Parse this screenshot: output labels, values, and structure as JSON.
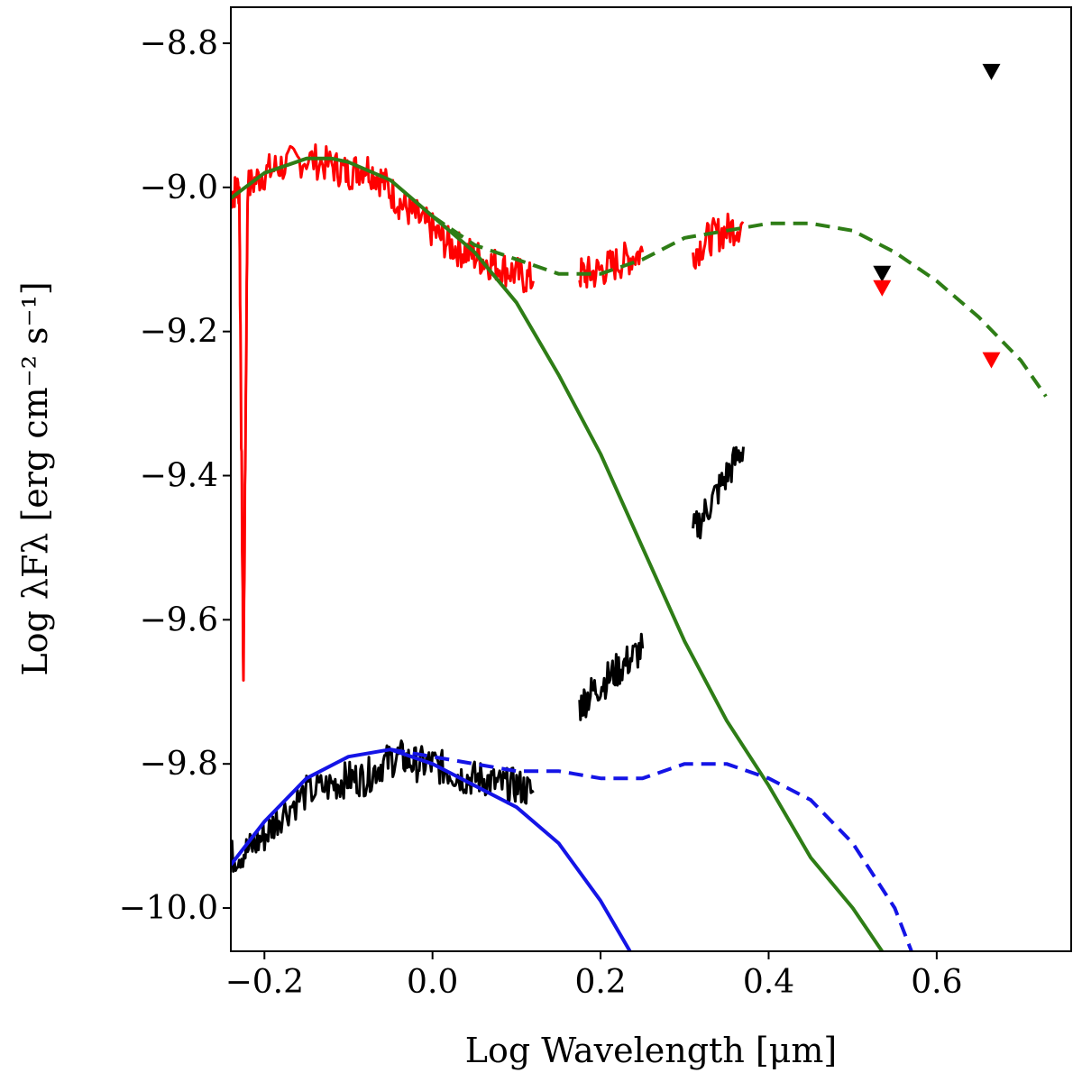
{
  "chart_data": {
    "type": "line",
    "title": "",
    "xlabel": "Log Wavelength [μm]",
    "ylabel": "Log λFλ [erg cm⁻² s⁻¹]",
    "xlim": [
      -0.24,
      0.76
    ],
    "ylim": [
      -10.06,
      -8.75
    ],
    "grid": false,
    "legend": "none",
    "x_ticks": [
      -0.2,
      0.0,
      0.2,
      0.4,
      0.6
    ],
    "x_tick_labels": [
      "−0.2",
      "0.0",
      "0.2",
      "0.4",
      "0.6"
    ],
    "y_ticks": [
      -8.8,
      -9.0,
      -9.2,
      -9.4,
      -9.6,
      -9.8,
      -10.0
    ],
    "y_tick_labels": [
      "−8.8",
      "−9.0",
      "−9.2",
      "−9.4",
      "−9.6",
      "−9.8",
      "−10.0"
    ],
    "series": [
      {
        "name": "observed spectrum (red)",
        "color": "#ff0000",
        "style": "spectrum",
        "x": [
          -0.24,
          -0.23,
          -0.225,
          -0.22,
          -0.2,
          -0.18,
          -0.15,
          -0.12,
          -0.1,
          -0.08,
          -0.06,
          -0.04,
          -0.02,
          0.0,
          0.02,
          0.04,
          0.06,
          0.08,
          0.1,
          0.12
        ],
        "y": [
          -9.01,
          -9.0,
          -9.68,
          -9.0,
          -8.98,
          -8.97,
          -8.96,
          -8.97,
          -8.98,
          -8.97,
          -8.99,
          -9.02,
          -9.04,
          -9.06,
          -9.08,
          -9.09,
          -9.1,
          -9.11,
          -9.12,
          -9.13
        ]
      },
      {
        "name": "observed spectrum (red) segment 2",
        "color": "#ff0000",
        "style": "spectrum",
        "x": [
          0.175,
          0.19,
          0.21,
          0.23,
          0.25
        ],
        "y": [
          -9.12,
          -9.12,
          -9.11,
          -9.1,
          -9.09
        ]
      },
      {
        "name": "observed spectrum (red) segment 3",
        "color": "#ff0000",
        "style": "spectrum",
        "x": [
          0.31,
          0.33,
          0.35,
          0.37
        ],
        "y": [
          -9.09,
          -9.07,
          -9.06,
          -9.05
        ]
      },
      {
        "name": "observed spectrum (black)",
        "color": "#000000",
        "style": "spectrum",
        "x": [
          -0.24,
          -0.22,
          -0.2,
          -0.18,
          -0.15,
          -0.12,
          -0.1,
          -0.08,
          -0.06,
          -0.04,
          -0.02,
          0.0,
          0.02,
          0.04,
          0.06,
          0.08,
          0.1,
          0.12
        ],
        "y": [
          -9.93,
          -9.92,
          -9.9,
          -9.87,
          -9.84,
          -9.83,
          -9.82,
          -9.82,
          -9.8,
          -9.79,
          -9.8,
          -9.8,
          -9.81,
          -9.82,
          -9.82,
          -9.83,
          -9.83,
          -9.84
        ]
      },
      {
        "name": "observed spectrum (black) segment 2",
        "color": "#000000",
        "style": "spectrum",
        "x": [
          0.175,
          0.19,
          0.21,
          0.23,
          0.25
        ],
        "y": [
          -9.72,
          -9.7,
          -9.68,
          -9.66,
          -9.64
        ]
      },
      {
        "name": "observed spectrum (black) segment 3",
        "color": "#000000",
        "style": "spectrum",
        "x": [
          0.31,
          0.33,
          0.35,
          0.37
        ],
        "y": [
          -9.48,
          -9.44,
          -9.4,
          -9.36
        ]
      },
      {
        "name": "green model (solid)",
        "color": "#2e7d16",
        "style": "solid",
        "x": [
          -0.24,
          -0.2,
          -0.15,
          -0.12,
          -0.1,
          -0.05,
          0.0,
          0.05,
          0.1,
          0.15,
          0.2,
          0.25,
          0.3,
          0.35,
          0.4,
          0.45,
          0.5,
          0.535
        ],
        "y": [
          -9.015,
          -8.98,
          -8.96,
          -8.96,
          -8.965,
          -8.99,
          -9.04,
          -9.09,
          -9.16,
          -9.26,
          -9.37,
          -9.5,
          -9.63,
          -9.74,
          -9.83,
          -9.93,
          -10.0,
          -10.06
        ]
      },
      {
        "name": "green model (dashed)",
        "color": "#2e7d16",
        "style": "dashed",
        "x": [
          0.0,
          0.05,
          0.1,
          0.15,
          0.2,
          0.25,
          0.3,
          0.35,
          0.4,
          0.45,
          0.5,
          0.55,
          0.6,
          0.65,
          0.7,
          0.73
        ],
        "y": [
          -9.04,
          -9.08,
          -9.1,
          -9.12,
          -9.12,
          -9.1,
          -9.07,
          -9.06,
          -9.05,
          -9.05,
          -9.06,
          -9.09,
          -9.13,
          -9.18,
          -9.24,
          -9.29
        ]
      },
      {
        "name": "blue model (solid)",
        "color": "#1414e6",
        "style": "solid",
        "x": [
          -0.24,
          -0.2,
          -0.15,
          -0.1,
          -0.05,
          0.0,
          0.05,
          0.1,
          0.15,
          0.2,
          0.235
        ],
        "y": [
          -9.94,
          -9.88,
          -9.82,
          -9.79,
          -9.78,
          -9.8,
          -9.83,
          -9.86,
          -9.91,
          -9.99,
          -10.06
        ]
      },
      {
        "name": "blue model (dashed)",
        "color": "#1414e6",
        "style": "dashed",
        "x": [
          -0.05,
          0.0,
          0.05,
          0.1,
          0.15,
          0.2,
          0.25,
          0.3,
          0.35,
          0.4,
          0.45,
          0.5,
          0.55,
          0.57
        ],
        "y": [
          -9.78,
          -9.79,
          -9.8,
          -9.81,
          -9.81,
          -9.82,
          -9.82,
          -9.8,
          -9.8,
          -9.82,
          -9.85,
          -9.91,
          -10.0,
          -10.06
        ]
      }
    ],
    "upper_limits": [
      {
        "name": "black upper limit 1",
        "color": "#000000",
        "x": 0.535,
        "y": -9.12
      },
      {
        "name": "black upper limit 2",
        "color": "#000000",
        "x": 0.665,
        "y": -8.84
      },
      {
        "name": "red upper limit 1",
        "color": "#ff0000",
        "x": 0.535,
        "y": -9.14
      },
      {
        "name": "red upper limit 2",
        "color": "#ff0000",
        "x": 0.665,
        "y": -9.24
      }
    ]
  }
}
